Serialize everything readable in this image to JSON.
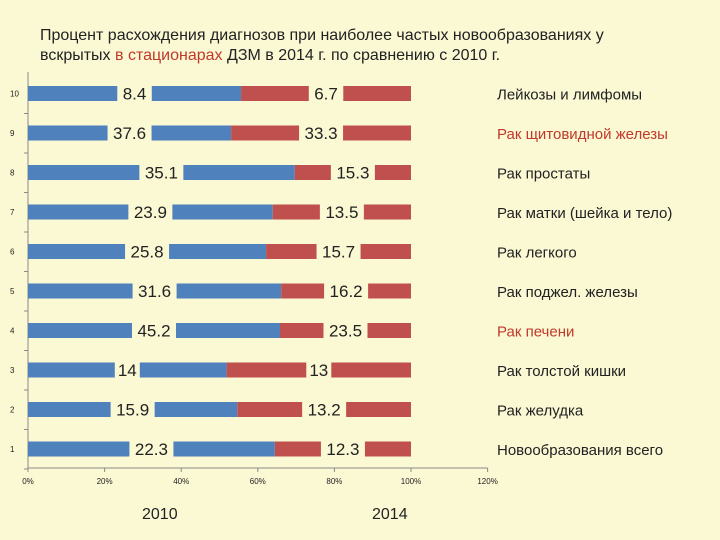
{
  "title": {
    "line1": "Процент расхождения диагнозов при наиболее частых новообразованиях у",
    "line2_a": "вскрытых ",
    "line2_b": "в стационарах",
    "line2_c": " ДЗМ в 2014 г. по сравнению  с 2010 г."
  },
  "year_labels": {
    "left": "2010",
    "right": "2014"
  },
  "colors": {
    "series_2010": "#4f81bd",
    "series_2014": "#c0504d",
    "highlight": "#c0392b",
    "background": "#fbf8d4"
  },
  "chart_data": {
    "type": "bar",
    "orientation": "horizontal",
    "stacked": "100%",
    "categories": [
      "1",
      "2",
      "3",
      "4",
      "5",
      "6",
      "7",
      "8",
      "9",
      "10"
    ],
    "category_names": [
      "Новообразования всего",
      "Рак желудка",
      "Рак толстой кишки",
      "Рак печени",
      "Рак  поджел. железы",
      "Рак легкого",
      "Рак матки (шейка и тело)",
      "Рак простаты",
      "Рак щитовидной железы",
      "Лейкозы и лимфомы"
    ],
    "highlighted_categories": [
      "Рак щитовидной железы",
      "Рак печени"
    ],
    "series": [
      {
        "name": "2010",
        "values": [
          22.3,
          15.9,
          14,
          45.2,
          31.6,
          25.8,
          23.9,
          35.1,
          37.6,
          8.4
        ]
      },
      {
        "name": "2014",
        "values": [
          12.3,
          13.2,
          13,
          23.5,
          16.2,
          15.7,
          13.5,
          15.3,
          33.3,
          6.7
        ]
      }
    ],
    "xlim": [
      0,
      120
    ],
    "x_ticks": [
      "0%",
      "20%",
      "40%",
      "60%",
      "80%",
      "100%",
      "120%"
    ],
    "xlabel": "",
    "ylabel": "",
    "grid": false,
    "legend": "none"
  }
}
